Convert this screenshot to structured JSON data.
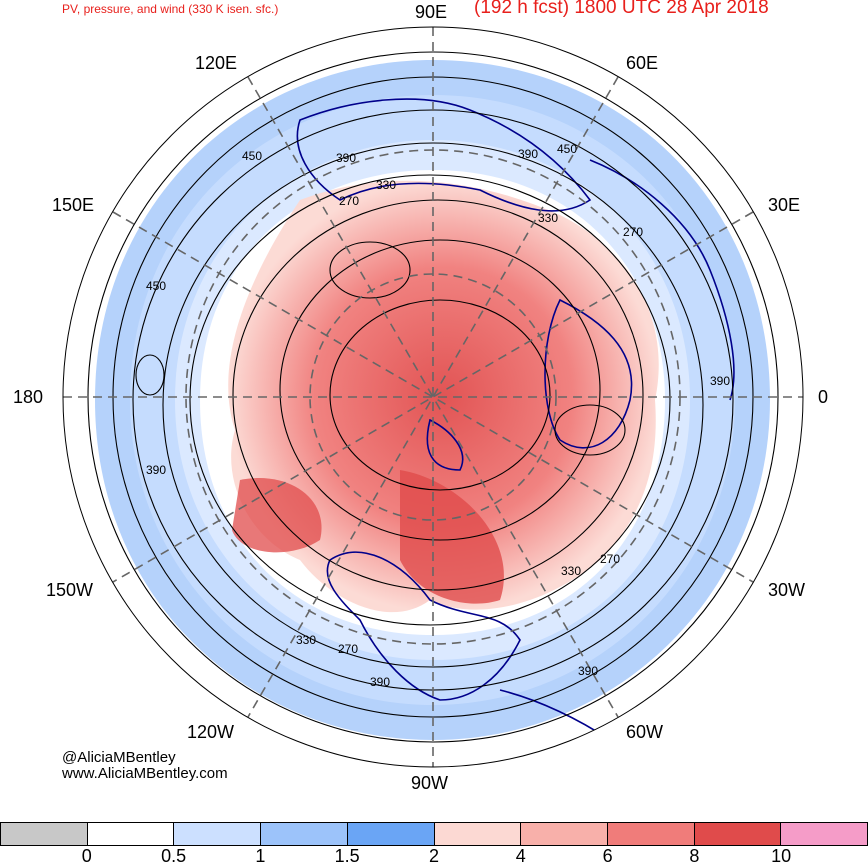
{
  "header": {
    "product_title": "PV, pressure, and wind (330 K isen. sfc.)",
    "forecast_title": "(192 h fcst) 1800 UTC 28 Apr 2018"
  },
  "longitude_labels": {
    "n": "90E",
    "ne": "60E",
    "ene": "30E",
    "e": "0",
    "ese": "30W",
    "se": "60W",
    "s": "90W",
    "sw": "120W",
    "wsw": "150W",
    "w": "180",
    "wnw": "150E",
    "nw": "120E"
  },
  "contour_labels": [
    "450",
    "390",
    "330",
    "270",
    "390",
    "450",
    "330",
    "270",
    "450",
    "390",
    "390",
    "270",
    "330",
    "390",
    "330",
    "270",
    "390"
  ],
  "credit": {
    "handle": "@AliciaMBentley",
    "website": "www.AliciaMBentley.com"
  },
  "colorbar": {
    "segments": [
      {
        "color": "#c8c8c8"
      },
      {
        "color": "#ffffff"
      },
      {
        "color": "#cce0ff"
      },
      {
        "color": "#9cc3fa"
      },
      {
        "color": "#6aa5f5"
      },
      {
        "color": "#fcd9d3"
      },
      {
        "color": "#f8b0aa"
      },
      {
        "color": "#f07c7a"
      },
      {
        "color": "#e04b4b"
      },
      {
        "color": "#f59cc8"
      }
    ],
    "ticks": [
      "0",
      "0.5",
      "1",
      "1.5",
      "2",
      "4",
      "6",
      "8",
      "10"
    ]
  },
  "colors": {
    "title_red": "#e8201c",
    "coast_blue": "#00008b",
    "contour_black": "#000000"
  }
}
